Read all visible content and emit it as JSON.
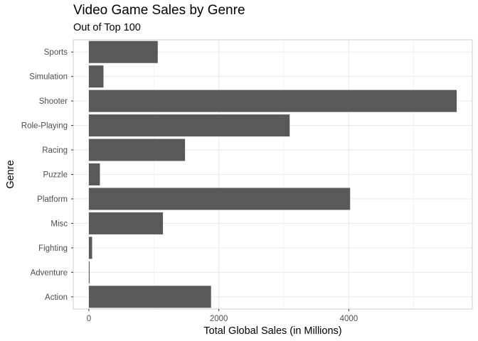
{
  "chart_data": {
    "type": "bar",
    "orientation": "horizontal",
    "title": "Video Game Sales by Genre",
    "subtitle": "Out of Top 100",
    "xlabel": "Total Global Sales (in Millions)",
    "ylabel": "Genre",
    "categories": [
      "Action",
      "Adventure",
      "Fighting",
      "Misc",
      "Platform",
      "Puzzle",
      "Racing",
      "Role-Playing",
      "Shooter",
      "Simulation",
      "Sports"
    ],
    "values": [
      1880,
      12,
      50,
      1140,
      4020,
      170,
      1480,
      3090,
      5660,
      225,
      1060
    ],
    "xlim": [
      -240,
      5900
    ],
    "xticks": [
      0,
      2000,
      4000
    ],
    "xtick_labels": [
      "0",
      "2000",
      "4000"
    ],
    "grid": true,
    "bar_color": "#595959",
    "grid_color": "#ebebeb",
    "panel_border_color": "#cccccc"
  }
}
